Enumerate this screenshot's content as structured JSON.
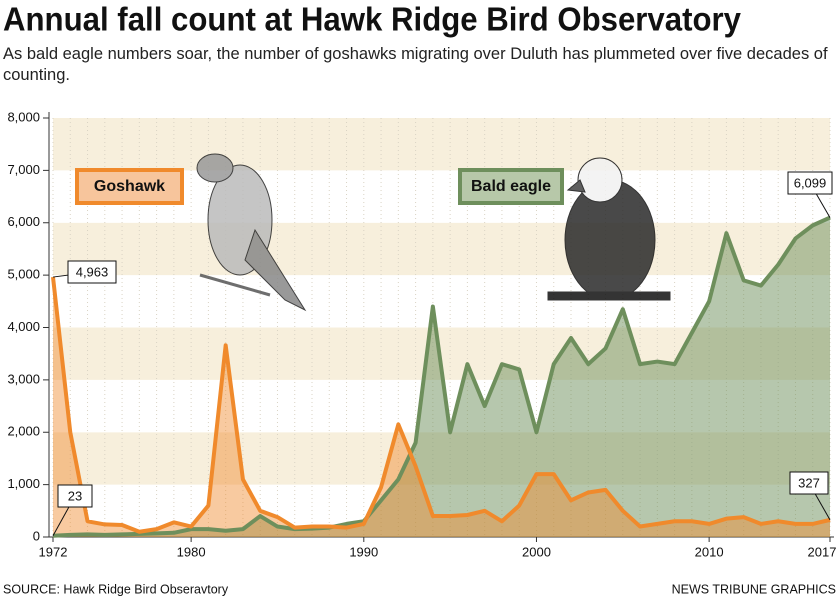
{
  "chart_data": {
    "type": "area",
    "title": "Annual fall count at Hawk Ridge Bird Observatory",
    "subtitle": "As bald eagle numbers soar, the number of goshawks migrating over Duluth has plummeted over five decades of counting.",
    "source": "SOURCE: Hawk Ridge Bird Obseravtory",
    "credit": "NEWS TRIBUNE GRAPHICS",
    "x": [
      1972,
      1973,
      1974,
      1975,
      1976,
      1977,
      1978,
      1979,
      1980,
      1981,
      1982,
      1983,
      1984,
      1985,
      1986,
      1987,
      1988,
      1989,
      1990,
      1991,
      1992,
      1993,
      1994,
      1995,
      1996,
      1997,
      1998,
      1999,
      2000,
      2001,
      2002,
      2003,
      2004,
      2005,
      2006,
      2007,
      2008,
      2009,
      2010,
      2011,
      2012,
      2013,
      2014,
      2015,
      2016,
      2017
    ],
    "series": [
      {
        "name": "Goshawk",
        "color": "#f08a2c",
        "values": [
          4963,
          2000,
          300,
          240,
          230,
          100,
          150,
          280,
          200,
          600,
          3660,
          1100,
          500,
          380,
          180,
          200,
          200,
          180,
          250,
          950,
          2150,
          1350,
          400,
          400,
          420,
          500,
          300,
          600,
          1200,
          1200,
          700,
          850,
          900,
          500,
          200,
          250,
          300,
          300,
          250,
          350,
          380,
          250,
          300,
          250,
          250,
          327
        ],
        "value_labels": [
          "4,963",
          null,
          null,
          null,
          null,
          null,
          null,
          null,
          null,
          null,
          null,
          null,
          null,
          null,
          null,
          null,
          null,
          null,
          null,
          null,
          null,
          null,
          null,
          null,
          null,
          null,
          null,
          null,
          null,
          null,
          null,
          null,
          null,
          null,
          null,
          null,
          null,
          null,
          null,
          null,
          null,
          null,
          null,
          null,
          null,
          null
        ]
      },
      {
        "name": "Bald eagle",
        "color": "#6e8f5c",
        "values": [
          23,
          40,
          50,
          40,
          50,
          60,
          70,
          80,
          150,
          150,
          120,
          150,
          400,
          200,
          150,
          160,
          180,
          250,
          300,
          700,
          1100,
          1800,
          4400,
          2000,
          3300,
          2500,
          3300,
          3200,
          2000,
          3300,
          3800,
          3300,
          3600,
          4350,
          3300,
          3350,
          3300,
          3900,
          4500,
          5800,
          4900,
          4800,
          5200,
          5700,
          5950,
          6099
        ],
        "value_labels": [
          null,
          null,
          null,
          null,
          null,
          null,
          null,
          null,
          null,
          null,
          null,
          null,
          null,
          null,
          null,
          null,
          null,
          null,
          null,
          null,
          null,
          null,
          null,
          null,
          null,
          null,
          null,
          null,
          null,
          null,
          null,
          null,
          null,
          null,
          null,
          null,
          null,
          null,
          null,
          null,
          null,
          null,
          null,
          null,
          null,
          "6,099"
        ]
      }
    ],
    "xlim": [
      1972,
      2017
    ],
    "xticks": [
      1972,
      1980,
      1990,
      2000,
      2010,
      2017
    ],
    "ylim": [
      0,
      8000
    ],
    "yticks": [
      0,
      {
        "value": 1000,
        "label": "1,000"
      },
      {
        "value": 2000,
        "label": "2,000"
      },
      {
        "value": 3000,
        "label": "3,000"
      },
      {
        "value": 4000,
        "label": "4,000"
      },
      {
        "value": 5000,
        "label": "5,000"
      },
      {
        "value": 6000,
        "label": "6,000"
      },
      {
        "value": 7000,
        "label": "7,000"
      },
      {
        "value": 8000,
        "label": "8,000"
      }
    ],
    "grid": true
  }
}
